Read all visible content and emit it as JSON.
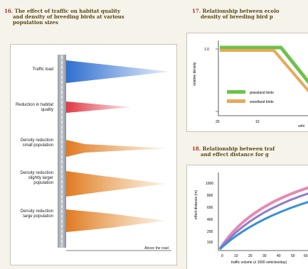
{
  "fig16": {
    "number": "16.",
    "caption_line1": "The effect of traffic on habitat quality",
    "caption_line2": "and density of breeding birds at various",
    "caption_line3": "population sizes",
    "rows": [
      {
        "label": "Traffic load",
        "color": "#3d7fd0"
      },
      {
        "label": "Reduction in habitat quality",
        "color": "#e24a50"
      },
      {
        "label": "Density reduction small population",
        "color": "#e58a2e"
      },
      {
        "label": "Density reduction slightly larger population",
        "color": "#e58a2e"
      },
      {
        "label": "Density reduction large population",
        "color": "#e58a2e"
      }
    ],
    "axis_label": "Above the road"
  },
  "fig17": {
    "number": "17.",
    "caption_line1": "Relationship between ecolo",
    "caption_line2": "density of breeding bird p",
    "ylabel": "relative density",
    "yticks": [
      "1.0"
    ],
    "xticks": [
      "20",
      "10"
    ],
    "xlabel_fragment": "vehi",
    "legend": [
      {
        "label": "grassland birds",
        "color": "#6cc24a"
      },
      {
        "label": "woodland birds",
        "color": "#e8a85a"
      }
    ]
  },
  "fig18": {
    "number": "18.",
    "caption_line1": "Relationship between traf",
    "caption_line2": "and effect distance for g",
    "ylabel": "effect distance (m)",
    "yticks": [
      "1000",
      "800",
      "600",
      "400",
      "200",
      "100"
    ],
    "xticks": [
      "0",
      "10",
      "20",
      "30",
      "40",
      "50",
      "60"
    ],
    "xlabel": "traffic volume (x 1000 vehicles/day)"
  }
}
